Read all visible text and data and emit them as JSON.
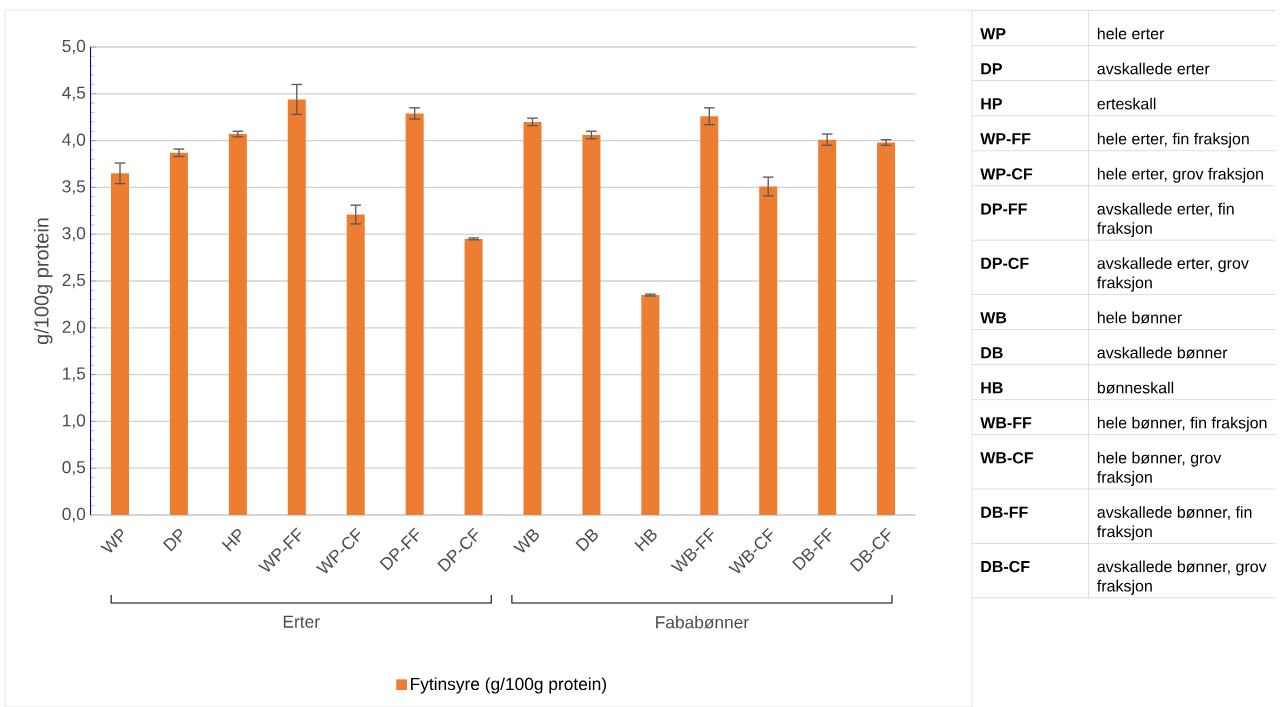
{
  "chart_data": {
    "type": "bar",
    "ylabel": "g/100g protein",
    "categories": [
      "WP",
      "DP",
      "HP",
      "WP-FF",
      "WP-CF",
      "DP-FF",
      "DP-CF",
      "WB",
      "DB",
      "HB",
      "WB-FF",
      "WB-CF",
      "DB-FF",
      "DB-CF"
    ],
    "series": [
      {
        "name": "Fytinsyre (g/100g protein)",
        "color": "#ed7d31",
        "values": [
          3.65,
          3.87,
          4.07,
          4.44,
          3.21,
          4.29,
          2.95,
          4.2,
          4.06,
          2.35,
          4.26,
          3.51,
          4.01,
          3.98
        ],
        "errors": [
          0.11,
          0.04,
          0.03,
          0.16,
          0.1,
          0.06,
          0.01,
          0.04,
          0.04,
          0.01,
          0.09,
          0.1,
          0.06,
          0.03
        ]
      }
    ],
    "ylim": [
      0,
      5
    ],
    "yticks": [
      {
        "value": 0,
        "label": "0,0"
      },
      {
        "value": 0.5,
        "label": "0,5"
      },
      {
        "value": 1,
        "label": "1,0"
      },
      {
        "value": 1.5,
        "label": "1,5"
      },
      {
        "value": 2,
        "label": "2,0"
      },
      {
        "value": 2.5,
        "label": "2,5"
      },
      {
        "value": 3,
        "label": "3,0"
      },
      {
        "value": 3.5,
        "label": "3,5"
      },
      {
        "value": 4,
        "label": "4,0"
      },
      {
        "value": 4.5,
        "label": "4,5"
      },
      {
        "value": 5,
        "label": "5,0"
      }
    ],
    "grid": "y",
    "legend": "bottom",
    "annotations": [
      "Erter",
      "Fababønner",
      "WP",
      "hele erter",
      "DP",
      "avskallede erter",
      "HP",
      "erteskall",
      "WP-FF",
      "hele erter, fin fraksjon",
      "WP-CF",
      "hele erter, grov fraksjon",
      "DP-FF",
      "avskallede erter, fin fraksjon",
      "DP-CF",
      "avskallede erter, grov fraksjon",
      "WB",
      "hele bønner",
      "DB",
      "avskallede bønner",
      "HB",
      "bønneskall",
      "WB-FF",
      "hele bønner, fin fraksjon",
      "WB-CF",
      "hele bønner, grov fraksjon",
      "DB-FF",
      "avskallede bønner, fin fraksjon",
      "DB-CF",
      "avskallede bønner, grov fraksjon"
    ]
  }
}
